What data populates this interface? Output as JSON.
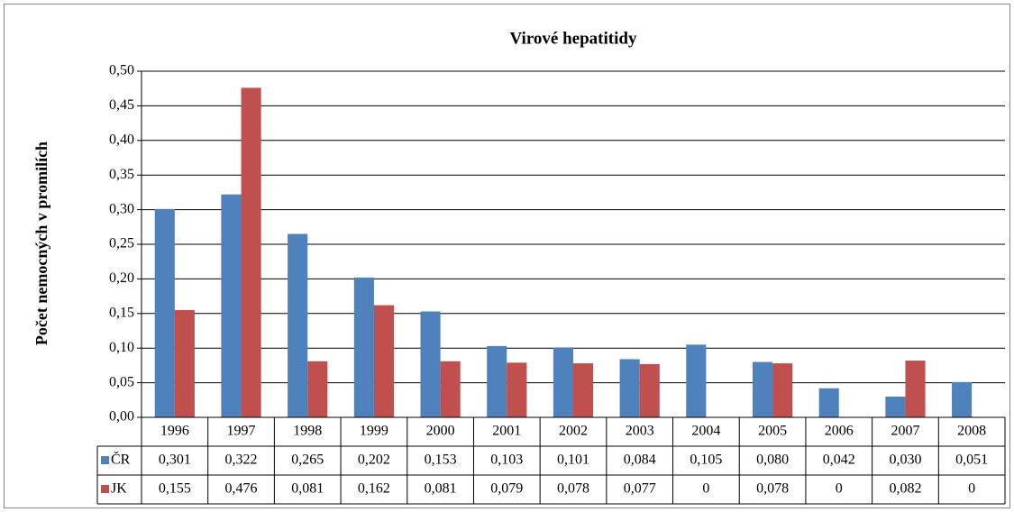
{
  "chart_data": {
    "type": "bar",
    "title": "Virové hepatitidy",
    "y_label": "Počet nemocných v promilích",
    "categories": [
      "1996",
      "1997",
      "1998",
      "1999",
      "2000",
      "2001",
      "2002",
      "2003",
      "2004",
      "2005",
      "2006",
      "2007",
      "2008"
    ],
    "series": [
      {
        "name": "ČR",
        "color": "#4f81bd",
        "values": [
          0.301,
          0.322,
          0.265,
          0.202,
          0.153,
          0.103,
          0.101,
          0.084,
          0.105,
          0.08,
          0.042,
          0.03,
          0.051
        ],
        "value_labels": [
          "0,301",
          "0,322",
          "0,265",
          "0,202",
          "0,153",
          "0,103",
          "0,101",
          "0,084",
          "0,105",
          "0,080",
          "0,042",
          "0,030",
          "0,051"
        ]
      },
      {
        "name": "JK",
        "color": "#c0504d",
        "values": [
          0.155,
          0.476,
          0.081,
          0.162,
          0.081,
          0.079,
          0.078,
          0.077,
          0,
          0.078,
          0,
          0.082,
          0
        ],
        "value_labels": [
          "0,155",
          "0,476",
          "0,081",
          "0,162",
          "0,081",
          "0,079",
          "0,078",
          "0,077",
          "0",
          "0,078",
          "0",
          "0,082",
          "0"
        ]
      }
    ],
    "ylim": [
      0,
      0.5
    ],
    "yticks": [
      {
        "value": 0,
        "label": "0,00"
      },
      {
        "value": 0.05,
        "label": "0,05"
      },
      {
        "value": 0.1,
        "label": "0,10"
      },
      {
        "value": 0.15,
        "label": "0,15"
      },
      {
        "value": 0.2,
        "label": "0,20"
      },
      {
        "value": 0.25,
        "label": "0,25"
      },
      {
        "value": 0.3,
        "label": "0,30"
      },
      {
        "value": 0.35,
        "label": "0,35"
      },
      {
        "value": 0.4,
        "label": "0,40"
      },
      {
        "value": 0.45,
        "label": "0,45"
      },
      {
        "value": 0.5,
        "label": "0,50"
      }
    ],
    "grid": true
  }
}
